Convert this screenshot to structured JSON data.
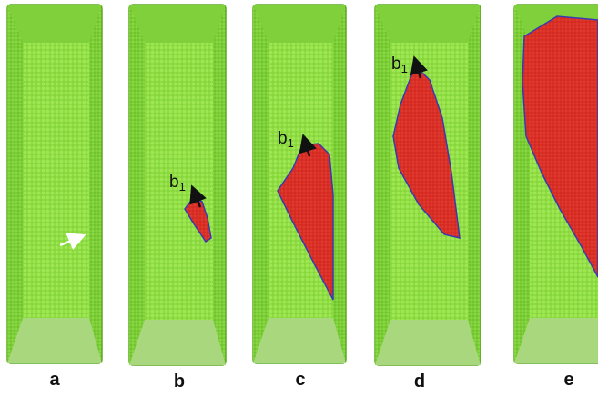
{
  "panels": [
    {
      "label": "a"
    },
    {
      "label": "b",
      "annotation": {
        "text": "b",
        "subscript": "1"
      }
    },
    {
      "label": "c",
      "annotation": {
        "text": "b",
        "subscript": "1"
      }
    },
    {
      "label": "d",
      "annotation": {
        "text": "b",
        "subscript": "1"
      }
    },
    {
      "label": "e"
    }
  ]
}
